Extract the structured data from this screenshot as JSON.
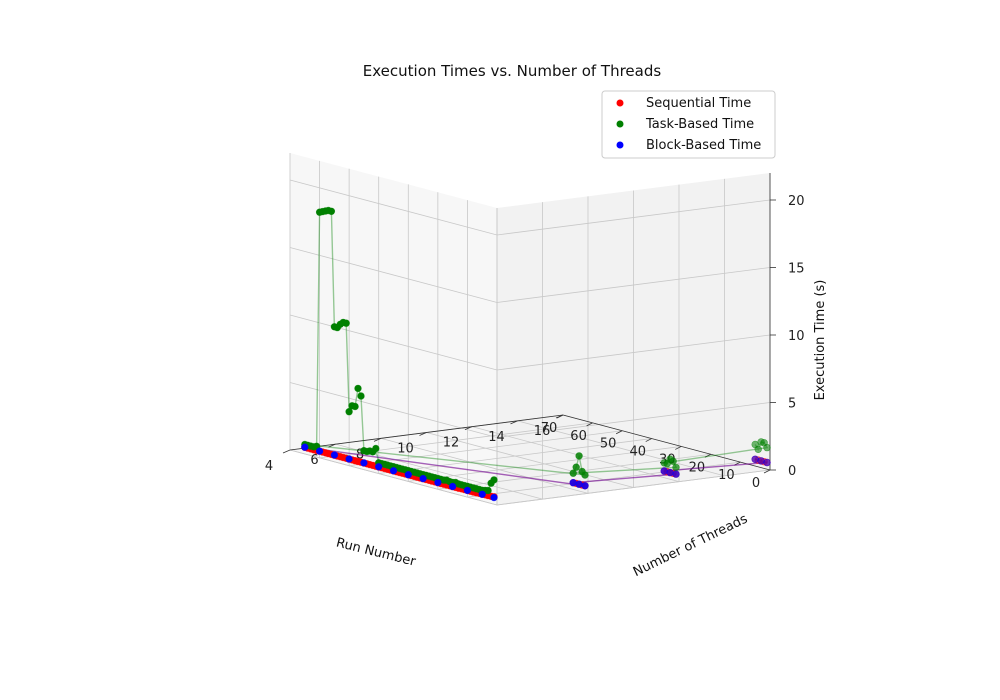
{
  "chart_data": {
    "type": "scatter",
    "title": "Execution Times vs. Number of Threads",
    "xlabel": "Run Number",
    "ylabel": "Number of Threads",
    "zlabel": "Execution Time (s)",
    "xlim": [
      0,
      70
    ],
    "ylim": [
      4,
      16
    ],
    "zlim": [
      0,
      22
    ],
    "xticks": [
      0,
      10,
      20,
      30,
      40,
      50,
      60,
      70
    ],
    "yticks": [
      4,
      6,
      8,
      10,
      12,
      14,
      16
    ],
    "zticks": [
      0,
      5,
      10,
      15,
      20
    ],
    "grid": true,
    "legend_position": "top-right",
    "series": [
      {
        "name": "Sequential Time",
        "color": "#ff0000",
        "points": [
          [
            1,
            4,
            0.55
          ],
          [
            2,
            4,
            0.53
          ],
          [
            3,
            4,
            0.52
          ],
          [
            4,
            4,
            0.52
          ],
          [
            5,
            4,
            0.51
          ],
          [
            6,
            4,
            0.51
          ],
          [
            7,
            4,
            0.5
          ],
          [
            8,
            4,
            0.5
          ],
          [
            9,
            4,
            0.5
          ],
          [
            10,
            4,
            0.5
          ],
          [
            11,
            4,
            0.5
          ],
          [
            12,
            4,
            0.5
          ],
          [
            13,
            4,
            0.49
          ],
          [
            14,
            4,
            0.49
          ],
          [
            15,
            4,
            0.49
          ],
          [
            16,
            4,
            0.49
          ],
          [
            17,
            4,
            0.49
          ],
          [
            18,
            4,
            0.49
          ],
          [
            19,
            4,
            0.49
          ],
          [
            20,
            4,
            0.49
          ],
          [
            21,
            4,
            0.49
          ],
          [
            22,
            4,
            0.49
          ],
          [
            23,
            4,
            0.49
          ],
          [
            24,
            4,
            0.49
          ],
          [
            25,
            4,
            0.49
          ],
          [
            26,
            4,
            0.49
          ],
          [
            27,
            4,
            0.49
          ],
          [
            28,
            4,
            0.49
          ],
          [
            29,
            4,
            0.49
          ],
          [
            30,
            4,
            0.49
          ],
          [
            31,
            4,
            0.49
          ],
          [
            32,
            4,
            0.49
          ],
          [
            33,
            4,
            0.49
          ],
          [
            34,
            4,
            0.49
          ],
          [
            35,
            4,
            0.49
          ],
          [
            36,
            4,
            0.49
          ],
          [
            37,
            4,
            0.49
          ],
          [
            38,
            4,
            0.49
          ],
          [
            39,
            4,
            0.49
          ],
          [
            40,
            4,
            0.49
          ],
          [
            41,
            4,
            0.49
          ],
          [
            42,
            4,
            0.49
          ],
          [
            43,
            4,
            0.49
          ],
          [
            44,
            4,
            0.49
          ],
          [
            45,
            4,
            0.49
          ],
          [
            46,
            4,
            0.49
          ],
          [
            47,
            4,
            0.49
          ],
          [
            48,
            4,
            0.49
          ],
          [
            49,
            4,
            0.49
          ],
          [
            50,
            4,
            0.49
          ],
          [
            51,
            4,
            0.49
          ],
          [
            52,
            4,
            0.49
          ],
          [
            53,
            4,
            0.49
          ],
          [
            54,
            4,
            0.49
          ],
          [
            55,
            4,
            0.49
          ],
          [
            56,
            4,
            0.49
          ],
          [
            57,
            4,
            0.49
          ],
          [
            58,
            4,
            0.49
          ],
          [
            59,
            4,
            0.49
          ],
          [
            60,
            4,
            0.49
          ],
          [
            61,
            4,
            0.49
          ],
          [
            62,
            4,
            0.49
          ],
          [
            63,
            4,
            0.49
          ],
          [
            64,
            4,
            0.49
          ],
          [
            65,
            4,
            0.49
          ],
          [
            1,
            8,
            0.5
          ],
          [
            2,
            8,
            0.5
          ],
          [
            3,
            8,
            0.5
          ],
          [
            4,
            8,
            0.5
          ],
          [
            5,
            8,
            0.5
          ],
          [
            1,
            12,
            0.5
          ],
          [
            2,
            12,
            0.5
          ],
          [
            3,
            12,
            0.5
          ],
          [
            4,
            12,
            0.5
          ],
          [
            5,
            12,
            0.5
          ],
          [
            1,
            16,
            0.5
          ],
          [
            2,
            16,
            0.5
          ],
          [
            3,
            16,
            0.5
          ],
          [
            4,
            16,
            0.5
          ],
          [
            5,
            16,
            0.5
          ]
        ]
      },
      {
        "name": "Task-Based Time",
        "color": "#008000",
        "points": [
          [
            1,
            4,
            1.8
          ],
          [
            2,
            4,
            1.5
          ],
          [
            3,
            4,
            0.9
          ],
          [
            4,
            4,
            0.85
          ],
          [
            5,
            4,
            0.8
          ],
          [
            6,
            4,
            0.8
          ],
          [
            7,
            4,
            0.8
          ],
          [
            8,
            4,
            0.8
          ],
          [
            9,
            4,
            0.8
          ],
          [
            10,
            4,
            0.8
          ],
          [
            11,
            4,
            0.8
          ],
          [
            12,
            4,
            0.8
          ],
          [
            13,
            4,
            0.8
          ],
          [
            14,
            4,
            0.85
          ],
          [
            15,
            4,
            0.8
          ],
          [
            16,
            4,
            0.8
          ],
          [
            17,
            4,
            0.85
          ],
          [
            18,
            4,
            0.8
          ],
          [
            19,
            4,
            0.8
          ],
          [
            20,
            4,
            0.8
          ],
          [
            21,
            4,
            0.8
          ],
          [
            22,
            4,
            0.8
          ],
          [
            23,
            4,
            0.8
          ],
          [
            24,
            4,
            0.8
          ],
          [
            25,
            4,
            0.8
          ],
          [
            26,
            4,
            0.8
          ],
          [
            27,
            4,
            0.8
          ],
          [
            28,
            4,
            0.8
          ],
          [
            29,
            4,
            0.8
          ],
          [
            30,
            4,
            0.8
          ],
          [
            31,
            4,
            0.8
          ],
          [
            32,
            4,
            0.8
          ],
          [
            33,
            4,
            0.8
          ],
          [
            34,
            4,
            0.8
          ],
          [
            35,
            4,
            0.8
          ],
          [
            36,
            4,
            0.8
          ],
          [
            37,
            4,
            0.8
          ],
          [
            38,
            4,
            0.8
          ],
          [
            39,
            4,
            0.8
          ],
          [
            40,
            4,
            0.8
          ],
          [
            41,
            4,
            1.8
          ],
          [
            42,
            4,
            1.5
          ],
          [
            43,
            4,
            1.5
          ],
          [
            44,
            4,
            1.4
          ],
          [
            45,
            4,
            1.4
          ],
          [
            46,
            4,
            5.4
          ],
          [
            47,
            4,
            5.9
          ],
          [
            48,
            4,
            4.5
          ],
          [
            49,
            4,
            4.5
          ],
          [
            50,
            4,
            4.0
          ],
          [
            51,
            4,
            10.5
          ],
          [
            52,
            4,
            10.5
          ],
          [
            53,
            4,
            10.3
          ],
          [
            54,
            4,
            10.0
          ],
          [
            55,
            4,
            10.0
          ],
          [
            56,
            4,
            18.5
          ],
          [
            57,
            4,
            18.5
          ],
          [
            58,
            4,
            18.4
          ],
          [
            59,
            4,
            18.3
          ],
          [
            60,
            4,
            18.2
          ],
          [
            61,
            4,
            0.8
          ],
          [
            62,
            4,
            0.7
          ],
          [
            63,
            4,
            0.7
          ],
          [
            64,
            4,
            0.7
          ],
          [
            65,
            4,
            0.7
          ],
          [
            1,
            8,
            1.3
          ],
          [
            2,
            8,
            1.5
          ],
          [
            3,
            8,
            2.6
          ],
          [
            4,
            8,
            1.7
          ],
          [
            5,
            8,
            1.2
          ],
          [
            1,
            12,
            1.0
          ],
          [
            2,
            12,
            1.4
          ],
          [
            3,
            12,
            1.5
          ],
          [
            4,
            12,
            1.1
          ],
          [
            5,
            12,
            1.1
          ],
          [
            1,
            16,
            1.6
          ],
          [
            2,
            16,
            1.9
          ],
          [
            3,
            16,
            1.9
          ],
          [
            4,
            16,
            1.3
          ],
          [
            5,
            16,
            1.6
          ]
        ]
      },
      {
        "name": "Block-Based Time",
        "color": "#0000ff",
        "points": [
          [
            1,
            4,
            0.5
          ],
          [
            5,
            4,
            0.5
          ],
          [
            10,
            4,
            0.5
          ],
          [
            15,
            4,
            0.5
          ],
          [
            20,
            4,
            0.5
          ],
          [
            25,
            4,
            0.5
          ],
          [
            30,
            4,
            0.5
          ],
          [
            35,
            4,
            0.5
          ],
          [
            40,
            4,
            0.5
          ],
          [
            45,
            4,
            0.5
          ],
          [
            50,
            4,
            0.5
          ],
          [
            55,
            4,
            0.5
          ],
          [
            60,
            4,
            0.5
          ],
          [
            65,
            4,
            0.5
          ],
          [
            1,
            8,
            0.5
          ],
          [
            3,
            8,
            0.5
          ],
          [
            5,
            8,
            0.5
          ],
          [
            1,
            12,
            0.5
          ],
          [
            3,
            12,
            0.5
          ],
          [
            5,
            12,
            0.5
          ],
          [
            1,
            16,
            0.5
          ],
          [
            3,
            16,
            0.5
          ],
          [
            5,
            16,
            0.5
          ]
        ]
      }
    ]
  }
}
